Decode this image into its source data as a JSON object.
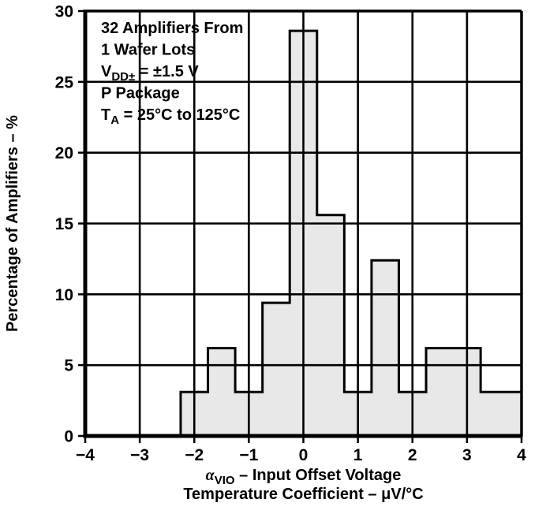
{
  "page": {
    "background": "#ffffff"
  },
  "chart_data": {
    "type": "bar",
    "subtype": "histogram",
    "annotation_lines": [
      [
        {
          "t": "32 Amplifiers From"
        }
      ],
      [
        {
          "t": "1 Wafer Lots"
        }
      ],
      [
        {
          "t": "V"
        },
        {
          "t": "DD±",
          "sub": true
        },
        {
          "t": " = ±1.5 V"
        }
      ],
      [
        {
          "t": "P Package"
        }
      ],
      [
        {
          "t": "T"
        },
        {
          "t": "A",
          "sub": true
        },
        {
          "t": " = 25°C to 125°C"
        }
      ]
    ],
    "ylabel": "Percentage of Amplifiers – %",
    "xlabel_lines": [
      [
        {
          "t": "α",
          "italic": true
        },
        {
          "t": "VIO",
          "sub": true
        },
        {
          "t": " – Input Offset Voltage"
        }
      ],
      [
        {
          "t": "Temperature Coefficient – μV/°C"
        }
      ]
    ],
    "xlim": [
      -4,
      4
    ],
    "ylim": [
      0,
      30
    ],
    "x_ticks": [
      -4,
      -3,
      -2,
      -1,
      0,
      1,
      2,
      3,
      4
    ],
    "x_tick_labels": [
      "−4",
      "−3",
      "−2",
      "−1",
      "0",
      "1",
      "2",
      "3",
      "4"
    ],
    "y_ticks": [
      0,
      5,
      10,
      15,
      20,
      25,
      30
    ],
    "y_tick_labels": [
      "0",
      "5",
      "10",
      "15",
      "20",
      "25",
      "30"
    ],
    "bin_width": 0.5,
    "bin_centers": [
      -4,
      -3.5,
      -3,
      -2.5,
      -2,
      -1.5,
      -1,
      -0.5,
      0,
      0.5,
      1,
      1.5,
      2,
      2.5,
      3,
      3.5,
      4
    ],
    "values": [
      0,
      0,
      0,
      0,
      3.1,
      6.2,
      3.1,
      9.4,
      28.6,
      15.6,
      3.1,
      12.4,
      3.1,
      6.2,
      6.2,
      3.1,
      3.1
    ],
    "grid": true,
    "legend_position": "inside-top-left",
    "bar_fill": "#e8e8e8",
    "line_color": "#000000",
    "text_color": "#000000",
    "background": "#ffffff"
  }
}
